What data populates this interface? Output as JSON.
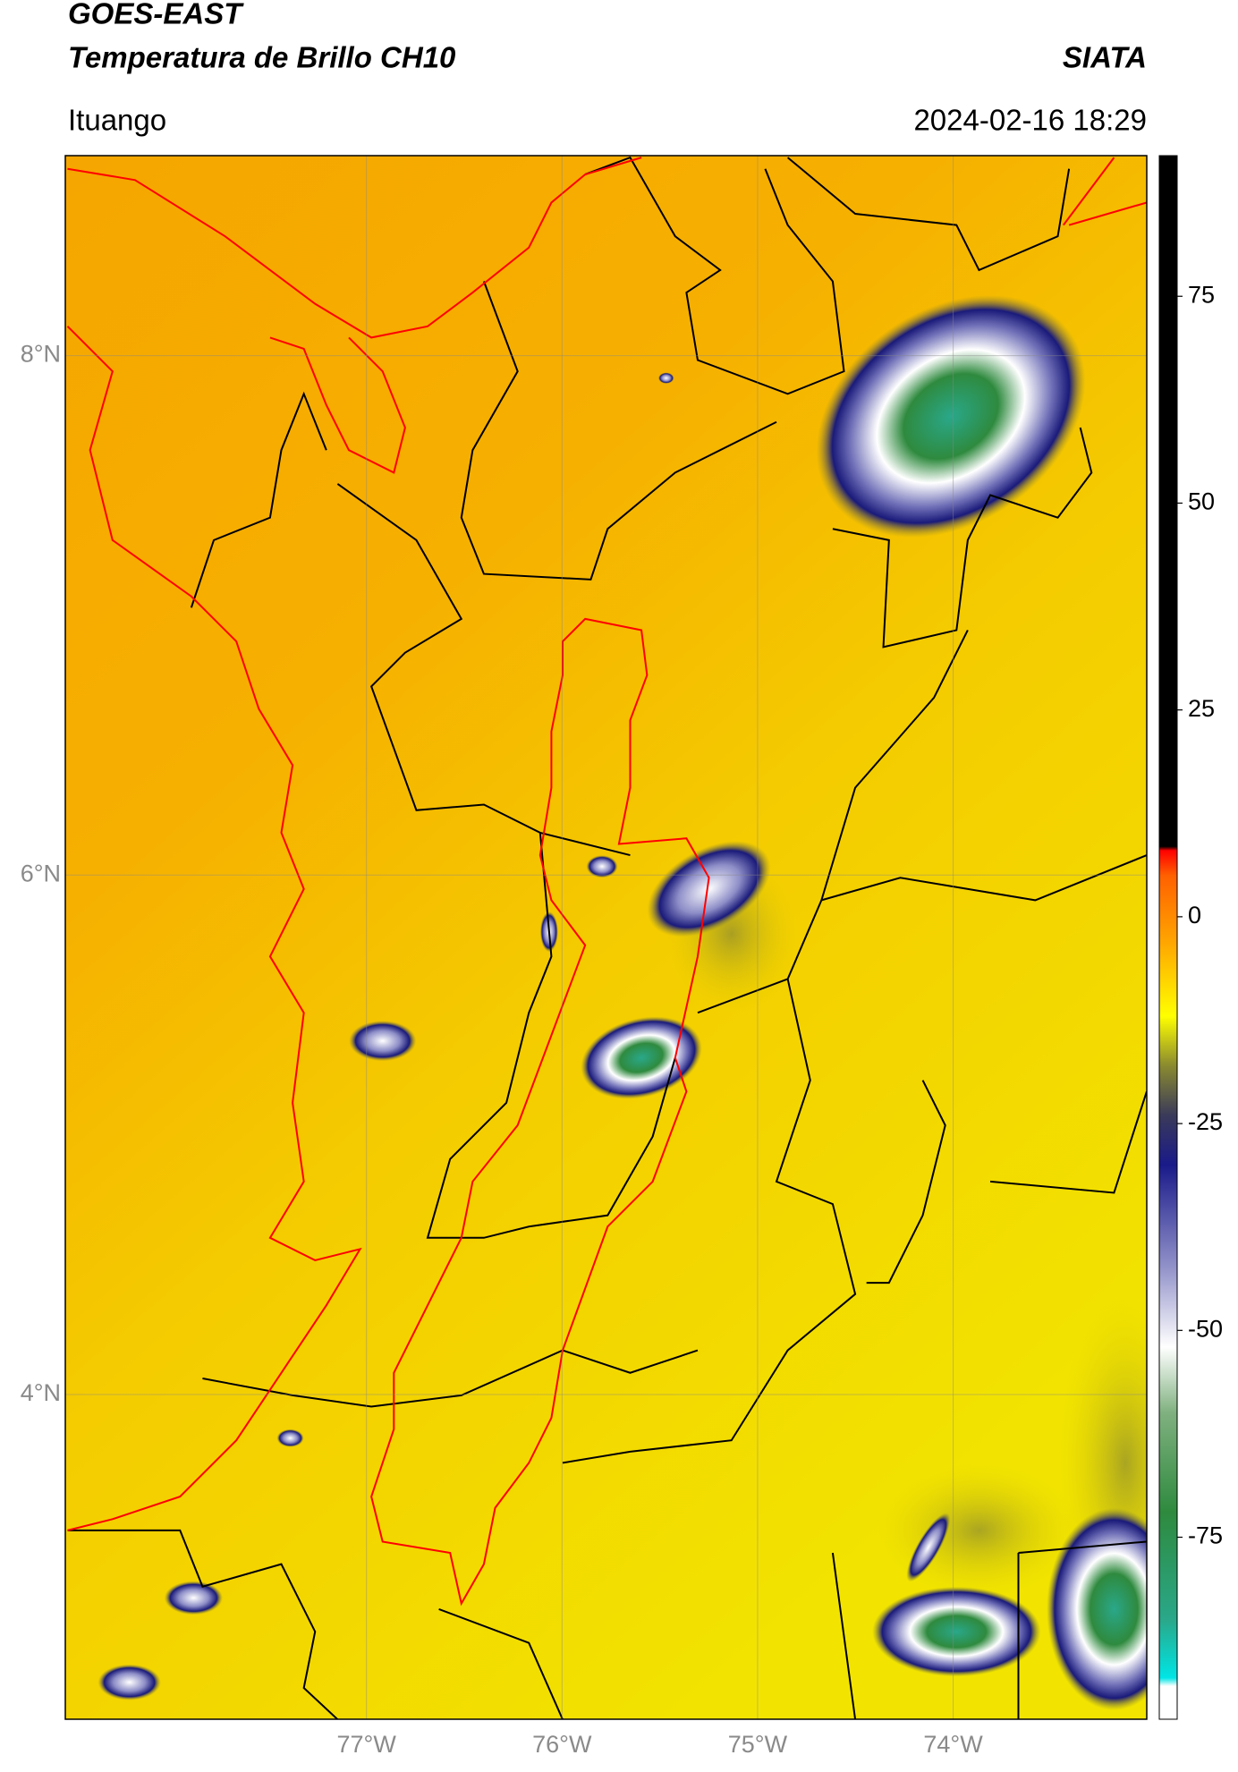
{
  "header": {
    "satellite": "GOES-EAST",
    "title": "Temperatura de Brillo CH10",
    "org": "SIATA",
    "region": "Ituango",
    "datetime": "2024-02-16 18:29"
  },
  "map": {
    "xlim": [
      -78.54,
      -73.01
    ],
    "ylim": [
      2.75,
      8.77
    ],
    "xticks": [
      {
        "value": -77,
        "label": "77°W"
      },
      {
        "value": -76,
        "label": "76°W"
      },
      {
        "value": -75,
        "label": "75°W"
      },
      {
        "value": -74,
        "label": "74°W"
      }
    ],
    "yticks": [
      {
        "value": 4,
        "label": "4°N"
      },
      {
        "value": 6,
        "label": "6°N"
      },
      {
        "value": 8,
        "label": "8°N"
      }
    ],
    "grid": true
  },
  "colorbar": {
    "lim": [
      -97,
      92
    ],
    "ticks": [
      75,
      50,
      25,
      0,
      -25,
      -50,
      -75
    ],
    "colormap": [
      {
        "value": -97,
        "color": "#ffffff"
      },
      {
        "value": -93,
        "color": "#ffffff"
      },
      {
        "value": -92,
        "color": "#00e5e5"
      },
      {
        "value": -85,
        "color": "#2aa88a"
      },
      {
        "value": -72,
        "color": "#2e8a3e"
      },
      {
        "value": -60,
        "color": "#7fb07f"
      },
      {
        "value": -52,
        "color": "#ffffff"
      },
      {
        "value": -42,
        "color": "#8e8ec8"
      },
      {
        "value": -30,
        "color": "#1a1a8a"
      },
      {
        "value": -24,
        "color": "#3a3a5a"
      },
      {
        "value": -18,
        "color": "#8a8a30"
      },
      {
        "value": -12,
        "color": "#ffff00"
      },
      {
        "value": -3,
        "color": "#ffa500"
      },
      {
        "value": 5,
        "color": "#ff6000"
      },
      {
        "value": 8,
        "color": "#ff0000"
      },
      {
        "value": 8.5,
        "color": "#000000"
      },
      {
        "value": 92,
        "color": "#000000"
      }
    ]
  }
}
